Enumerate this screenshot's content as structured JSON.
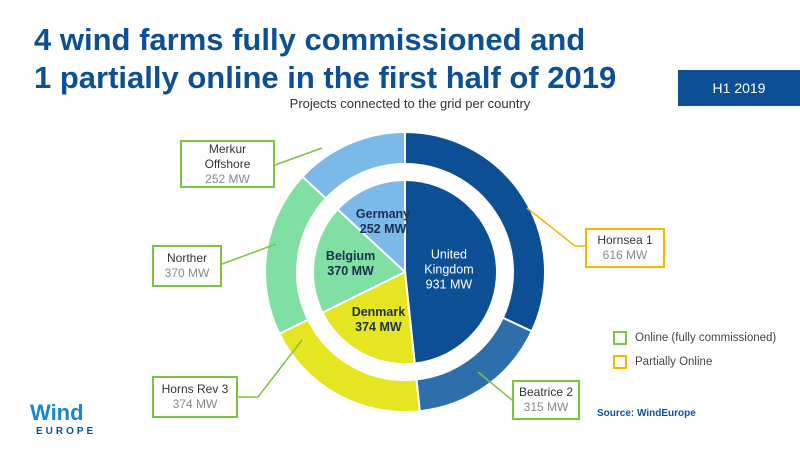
{
  "header": {
    "title_lines": [
      "4 wind farms fully commissioned and",
      "1 partially online in the first half of 2019"
    ],
    "badge": "H1 2019",
    "source": "Source: WindEurope",
    "logo": {
      "name": "Wind",
      "sub": "EUROPE"
    }
  },
  "chart_data": [
    {
      "type": "pie",
      "title": "Projects connected to the grid per country",
      "categories": [
        "United Kingdom",
        "Denmark",
        "Belgium",
        "Germany"
      ],
      "values": [
        931,
        374,
        370,
        252
      ],
      "value_labels": [
        "931 MW",
        "374 MW",
        "370 MW",
        "252 MW"
      ],
      "colors": [
        "#0d4f95",
        "#e6e521",
        "#80e0a4",
        "#7ab9e8"
      ],
      "label_colors": [
        "#ffffff",
        "#1b2f4f",
        "#1b2f4f",
        "#1b2f4f"
      ]
    },
    {
      "type": "donut",
      "categories": [
        "Hornsea 1",
        "Beatrice 2",
        "Horns Rev 3",
        "Norther",
        "Merkur Offshore"
      ],
      "values": [
        616,
        315,
        374,
        370,
        252
      ],
      "value_labels": [
        "616 MW",
        "315 MW",
        "374 MW",
        "370 MW",
        "252 MW"
      ],
      "colors": [
        "#0d4f95",
        "#2d6eab",
        "#e6e521",
        "#80e0a4",
        "#7ab9e8"
      ],
      "border_colors": [
        "#f5b800",
        "#7dc242",
        "#7dc242",
        "#7dc242",
        "#7dc242"
      ],
      "legend": [
        {
          "label": "Online (fully commissioned)",
          "color": "#7dc242"
        },
        {
          "label": "Partially Online",
          "color": "#f5b800"
        }
      ]
    }
  ]
}
